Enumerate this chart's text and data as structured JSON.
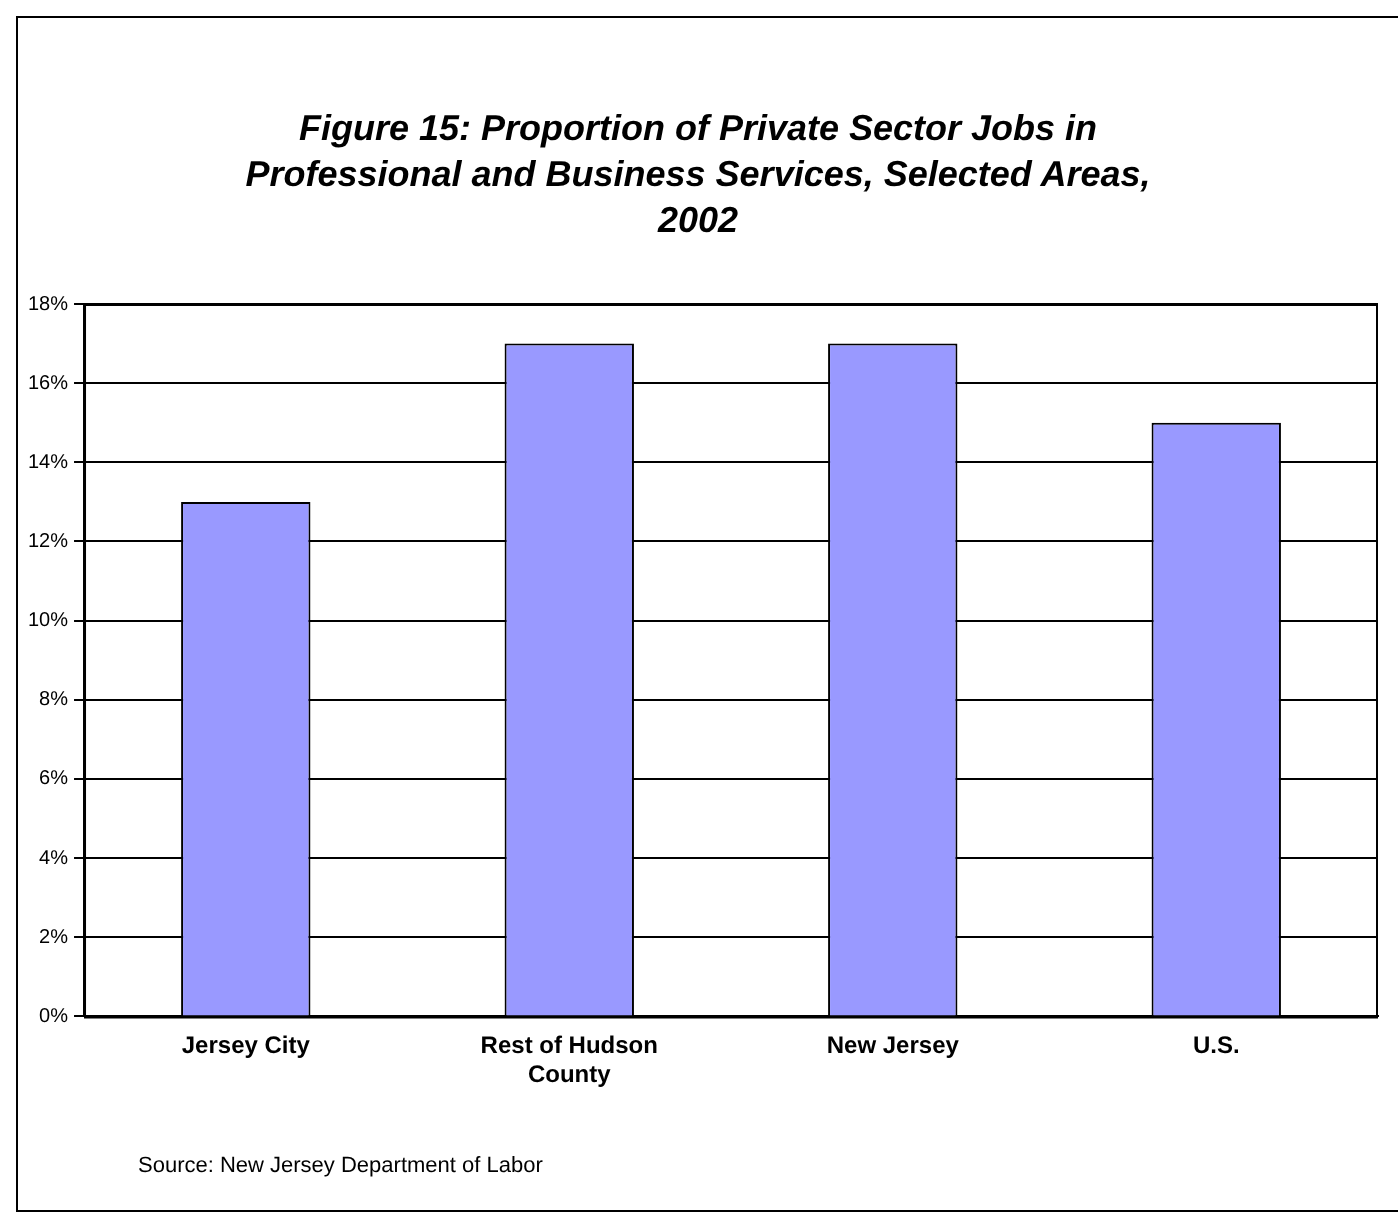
{
  "chart_data": {
    "type": "bar",
    "title": "Figure 15:  Proportion of Private Sector Jobs in Professional and Business Services, Selected Areas, 2002",
    "categories": [
      "Jersey City",
      "Rest of Hudson County",
      "New Jersey",
      "U.S."
    ],
    "values": [
      13,
      17,
      17,
      15
    ],
    "color": "#9999ff",
    "ylim": [
      0,
      18
    ],
    "yticks": [
      {
        "value": 0,
        "label": "0%"
      },
      {
        "value": 2,
        "label": "2%"
      },
      {
        "value": 4,
        "label": "4%"
      },
      {
        "value": 6,
        "label": "6%"
      },
      {
        "value": 8,
        "label": "8%"
      },
      {
        "value": 10,
        "label": "10%"
      },
      {
        "value": 12,
        "label": "12%"
      },
      {
        "value": 14,
        "label": "14%"
      },
      {
        "value": 16,
        "label": "16%"
      },
      {
        "value": 18,
        "label": "18%"
      }
    ],
    "grid": "y",
    "annotations": [
      "Source: New Jersey Department of Labor"
    ]
  }
}
